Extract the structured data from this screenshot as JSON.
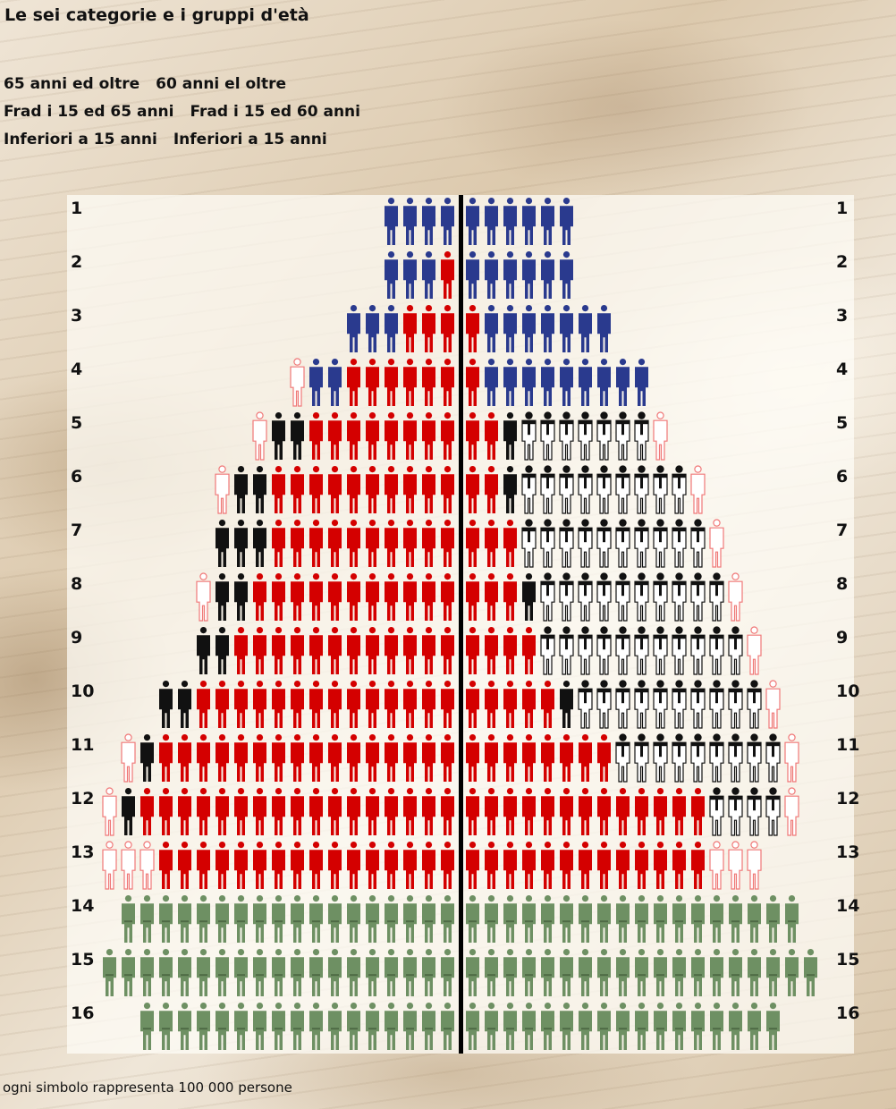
{
  "title": "Le sei categorie e i gruppi d'età",
  "legend": {
    "line1": [
      "65 anni ed oltre",
      "60 anni el oltre"
    ],
    "line2": [
      "Frad i 15 ed 65 anni",
      "Frad i 15 ed 60 anni"
    ],
    "line3": [
      "Inferiori a 15 anni",
      "Inferiori a 15 anni"
    ]
  },
  "footnote": "ogni simbolo rappresenta 100 000 persone",
  "colors": {
    "blue": "#2a3a8e",
    "red": "#d40000",
    "black": "#111111",
    "white_dark": "#ffffff",
    "outline": "#f07878",
    "green": "#6e9063",
    "divider": "#000000",
    "label": "#111111"
  },
  "chart_data": {
    "type": "pictogram",
    "unit": "ogni simbolo rappresenta 100 000 persone",
    "segment_order_from_center": "left: blue, red, black, outline; right: red, blue, black, white_dark, outline",
    "rows": [
      {
        "label": "1",
        "left": {
          "blue": 4,
          "red": 0,
          "black": 0,
          "outline": 0
        },
        "right": {
          "red": 0,
          "blue": 6,
          "black": 0,
          "white_dark": 0,
          "outline": 0
        }
      },
      {
        "label": "2",
        "left": {
          "blue": 3,
          "red": 1,
          "black": 0,
          "outline": 0
        },
        "right": {
          "red": 0,
          "blue": 6,
          "black": 0,
          "white_dark": 0,
          "outline": 0
        }
      },
      {
        "label": "3",
        "left": {
          "blue": 3,
          "red": 3,
          "black": 0,
          "outline": 0
        },
        "right": {
          "red": 1,
          "blue": 7,
          "black": 0,
          "white_dark": 0,
          "outline": 0
        }
      },
      {
        "label": "4",
        "left": {
          "blue": 2,
          "red": 6,
          "black": 0,
          "outline": 1
        },
        "right": {
          "red": 1,
          "blue": 9,
          "black": 0,
          "white_dark": 0,
          "outline": 0
        }
      },
      {
        "label": "5",
        "left": {
          "blue": 0,
          "red": 8,
          "black": 2,
          "outline": 1
        },
        "right": {
          "red": 2,
          "blue": 0,
          "black": 1,
          "white_dark": 7,
          "outline": 1
        }
      },
      {
        "label": "6",
        "left": {
          "blue": 0,
          "red": 10,
          "black": 2,
          "outline": 1
        },
        "right": {
          "red": 2,
          "blue": 0,
          "black": 1,
          "white_dark": 9,
          "outline": 1
        }
      },
      {
        "label": "7",
        "left": {
          "blue": 0,
          "red": 10,
          "black": 3,
          "outline": 0
        },
        "right": {
          "red": 3,
          "blue": 0,
          "black": 0,
          "white_dark": 10,
          "outline": 1
        }
      },
      {
        "label": "8",
        "left": {
          "blue": 0,
          "red": 11,
          "black": 2,
          "outline": 1
        },
        "right": {
          "red": 3,
          "blue": 0,
          "black": 1,
          "white_dark": 10,
          "outline": 1
        }
      },
      {
        "label": "9",
        "left": {
          "blue": 0,
          "red": 12,
          "black": 2,
          "outline": 0
        },
        "right": {
          "red": 4,
          "blue": 0,
          "black": 0,
          "white_dark": 11,
          "outline": 1
        }
      },
      {
        "label": "10",
        "left": {
          "blue": 0,
          "red": 14,
          "black": 2,
          "outline": 0
        },
        "right": {
          "red": 5,
          "blue": 0,
          "black": 1,
          "white_dark": 10,
          "outline": 1
        }
      },
      {
        "label": "11",
        "left": {
          "blue": 0,
          "red": 16,
          "black": 1,
          "outline": 1
        },
        "right": {
          "red": 8,
          "blue": 0,
          "black": 0,
          "white_dark": 9,
          "outline": 1
        }
      },
      {
        "label": "12",
        "left": {
          "blue": 0,
          "red": 17,
          "black": 1,
          "outline": 1
        },
        "right": {
          "red": 13,
          "blue": 0,
          "black": 0,
          "white_dark": 4,
          "outline": 1
        }
      },
      {
        "label": "13",
        "left": {
          "blue": 0,
          "red": 16,
          "black": 0,
          "outline": 3
        },
        "right": {
          "red": 13,
          "blue": 0,
          "black": 0,
          "white_dark": 0,
          "outline": 3
        }
      },
      {
        "label": "14",
        "left": {
          "green": 18
        },
        "right": {
          "green": 18
        }
      },
      {
        "label": "15",
        "left": {
          "green": 19
        },
        "right": {
          "green": 19
        }
      },
      {
        "label": "16",
        "left": {
          "green": 17
        },
        "right": {
          "green": 17
        }
      }
    ]
  }
}
